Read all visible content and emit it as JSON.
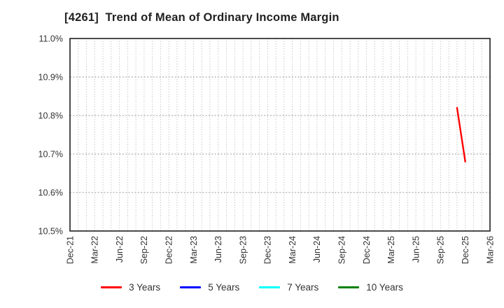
{
  "title": "[4261]  Trend of Mean of Ordinary Income Margin",
  "chart_data": {
    "type": "line",
    "title": "[4261]  Trend of Mean of Ordinary Income Margin",
    "xlabel": "",
    "ylabel": "",
    "ylim": [
      10.5,
      11.0
    ],
    "y_ticks": [
      "10.5%",
      "10.6%",
      "10.7%",
      "10.8%",
      "10.9%",
      "11.0%"
    ],
    "x_ticks": [
      "Dec-21",
      "Mar-22",
      "Jun-22",
      "Sep-22",
      "Dec-22",
      "Mar-23",
      "Jun-23",
      "Sep-23",
      "Dec-23",
      "Mar-24",
      "Jun-24",
      "Sep-24",
      "Dec-24",
      "Mar-25",
      "Jun-25",
      "Sep-25",
      "Dec-25",
      "Mar-26"
    ],
    "months_per_tick": 3,
    "months_total": 51,
    "grid": "dotted; vertical line every month, horizontal line every 0.1%",
    "legend_position": "bottom center",
    "series": [
      {
        "name": "3 Years",
        "color": "#ff0000",
        "points": [
          {
            "month": 47,
            "label": "Nov-25",
            "value": 10.82
          },
          {
            "month": 48,
            "label": "Dec-25",
            "value": 10.68
          }
        ]
      },
      {
        "name": "5 Years",
        "color": "#0000ff",
        "points": []
      },
      {
        "name": "7 Years",
        "color": "#00ffff",
        "points": []
      },
      {
        "name": "10 Years",
        "color": "#008000",
        "points": []
      }
    ]
  }
}
